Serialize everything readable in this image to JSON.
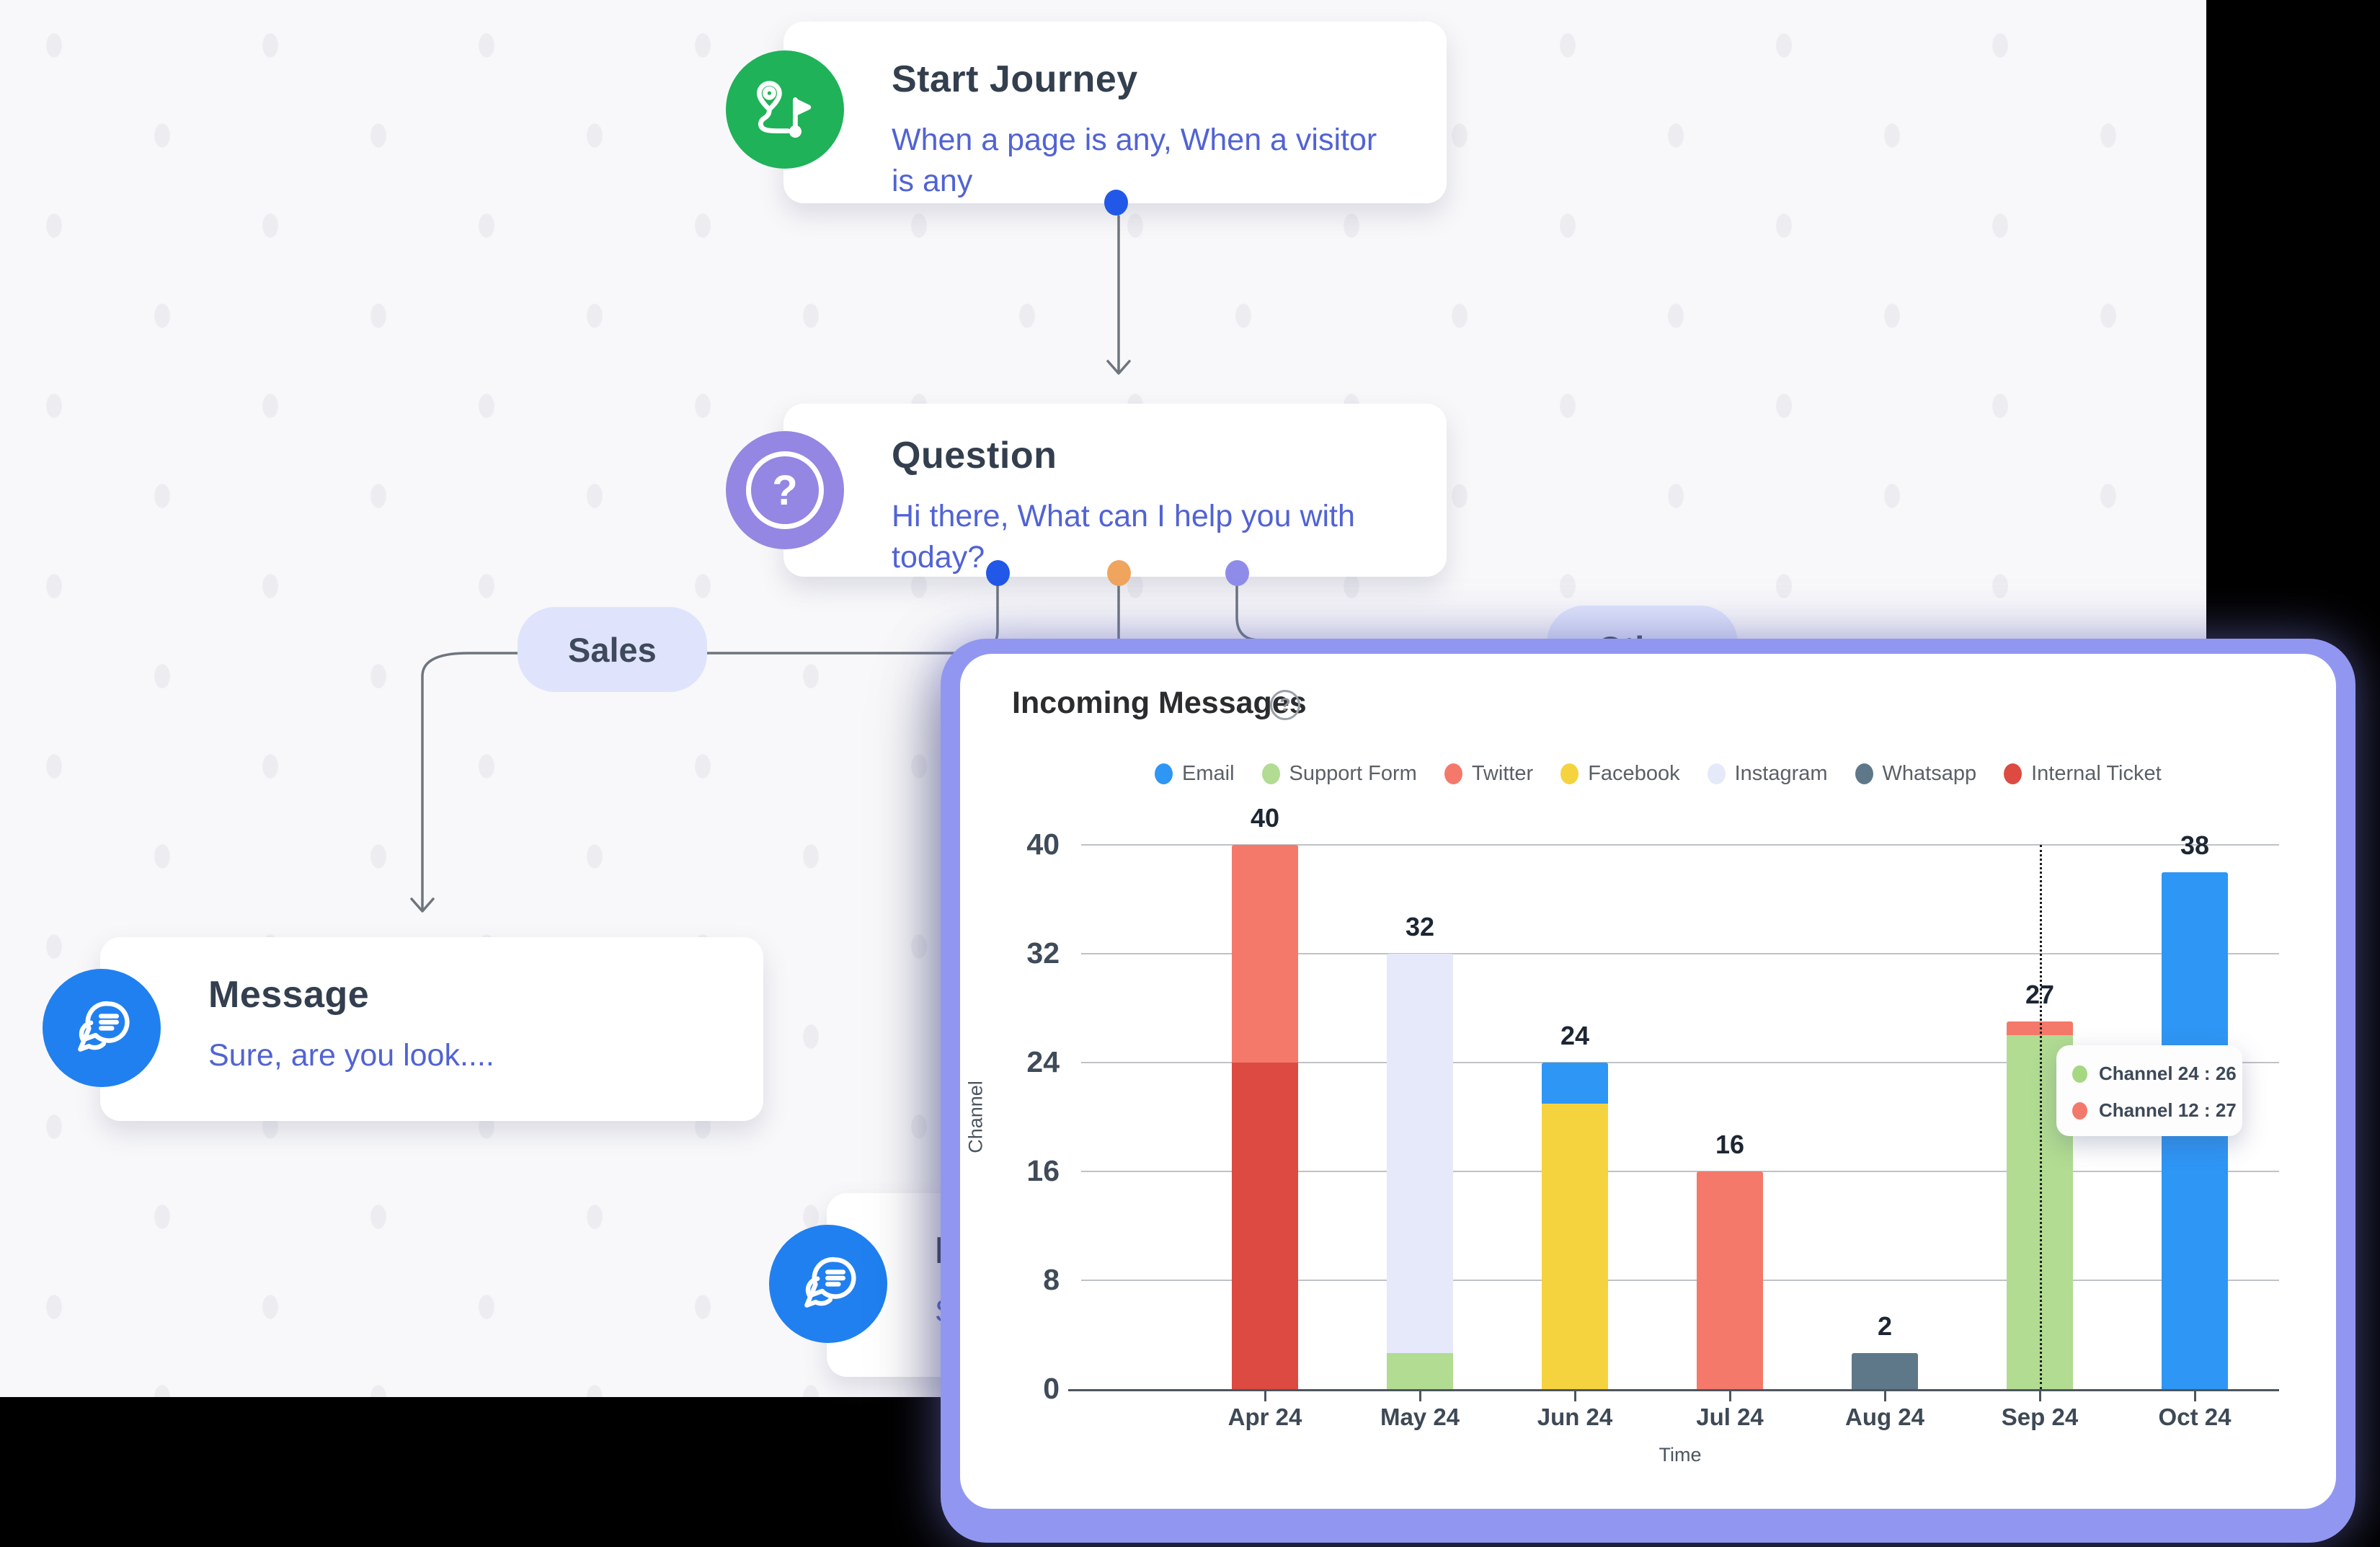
{
  "icons": {
    "question_glyph": "?",
    "help_glyph": "?"
  },
  "colors": {
    "node_title": "#333f4e",
    "node_subtitle": "#5163d3",
    "start_icon_bg": "#1fb259",
    "question_icon_bg": "#9486e3",
    "message_icon_bg": "#2080f0",
    "port_blue": "#2158e8",
    "port_orange": "#efa55e",
    "port_purple": "#8f8ce9",
    "connector": "#6e757e",
    "panel_border": "#9197f0",
    "branch_pill_bg": "#dfe4fc"
  },
  "canvas": {
    "nodes": {
      "start": {
        "title": "Start Journey",
        "subtitle": "When a page is any, When a visitor is any"
      },
      "question": {
        "title": "Question",
        "subtitle": "Hi there, What can I help you with today?"
      },
      "message1": {
        "title": "Message",
        "subtitle": "Sure, are you look...."
      },
      "message2": {
        "title": "Message",
        "subtitle": "Sure, are you look...."
      }
    },
    "branches": {
      "sales": "Sales",
      "other": "Other"
    }
  },
  "panel": {
    "title": "Incoming Messages"
  },
  "chart_data": {
    "type": "bar",
    "stacked": true,
    "title": "Incoming Messages",
    "xlabel": "Time",
    "ylabel": "Channel",
    "ylim": [
      0,
      40
    ],
    "yticks": [
      0,
      8,
      16,
      24,
      32,
      40
    ],
    "grid": true,
    "legend_position": "top",
    "legend": [
      {
        "name": "Email",
        "color": "#2e96f5"
      },
      {
        "name": "Support Form",
        "color": "#b1dc92"
      },
      {
        "name": "Twitter",
        "color": "#f4796a"
      },
      {
        "name": "Facebook",
        "color": "#f5d33f"
      },
      {
        "name": "Instagram",
        "color": "#e6e9f9"
      },
      {
        "name": "Whatsapp",
        "color": "#5f7889"
      },
      {
        "name": "Internal Ticket",
        "color": "#dc4a41"
      }
    ],
    "categories": [
      "Apr 24",
      "May 24",
      "Jun 24",
      "Jul 24",
      "Aug 24",
      "Sep 24",
      "Oct 24"
    ],
    "bars": [
      {
        "category": "Apr 24",
        "label": "40",
        "segments": [
          {
            "name": "Internal Ticket",
            "value": 24
          },
          {
            "name": "Twitter",
            "value": 16
          }
        ]
      },
      {
        "category": "May 24",
        "label": "32",
        "segments": [
          {
            "name": "Support Form",
            "value": 2
          },
          {
            "name": "Instagram",
            "value": 30
          }
        ]
      },
      {
        "category": "Jun 24",
        "label": "24",
        "segments": [
          {
            "name": "Facebook",
            "value": 21
          },
          {
            "name": "Email",
            "value": 3
          }
        ]
      },
      {
        "category": "Jul 24",
        "label": "16",
        "segments": [
          {
            "name": "Twitter",
            "value": 16
          }
        ]
      },
      {
        "category": "Aug 24",
        "label": "2",
        "segments": [
          {
            "name": "Whatsapp",
            "value": 2
          }
        ]
      },
      {
        "category": "Sep 24",
        "label": "27",
        "hover_marker": true,
        "segments": [
          {
            "name": "Support Form",
            "value": 26
          },
          {
            "name": "Twitter",
            "value": 1
          }
        ]
      },
      {
        "category": "Oct 24",
        "label": "38",
        "segments": [
          {
            "name": "Email",
            "value": 38
          }
        ]
      }
    ],
    "tooltip": {
      "anchor_category": "Sep 24",
      "rows": [
        {
          "label": "Channel 24 : 26",
          "color": "#a6d783"
        },
        {
          "label": "Channel 12 : 27",
          "color": "#f2796b"
        }
      ]
    }
  }
}
